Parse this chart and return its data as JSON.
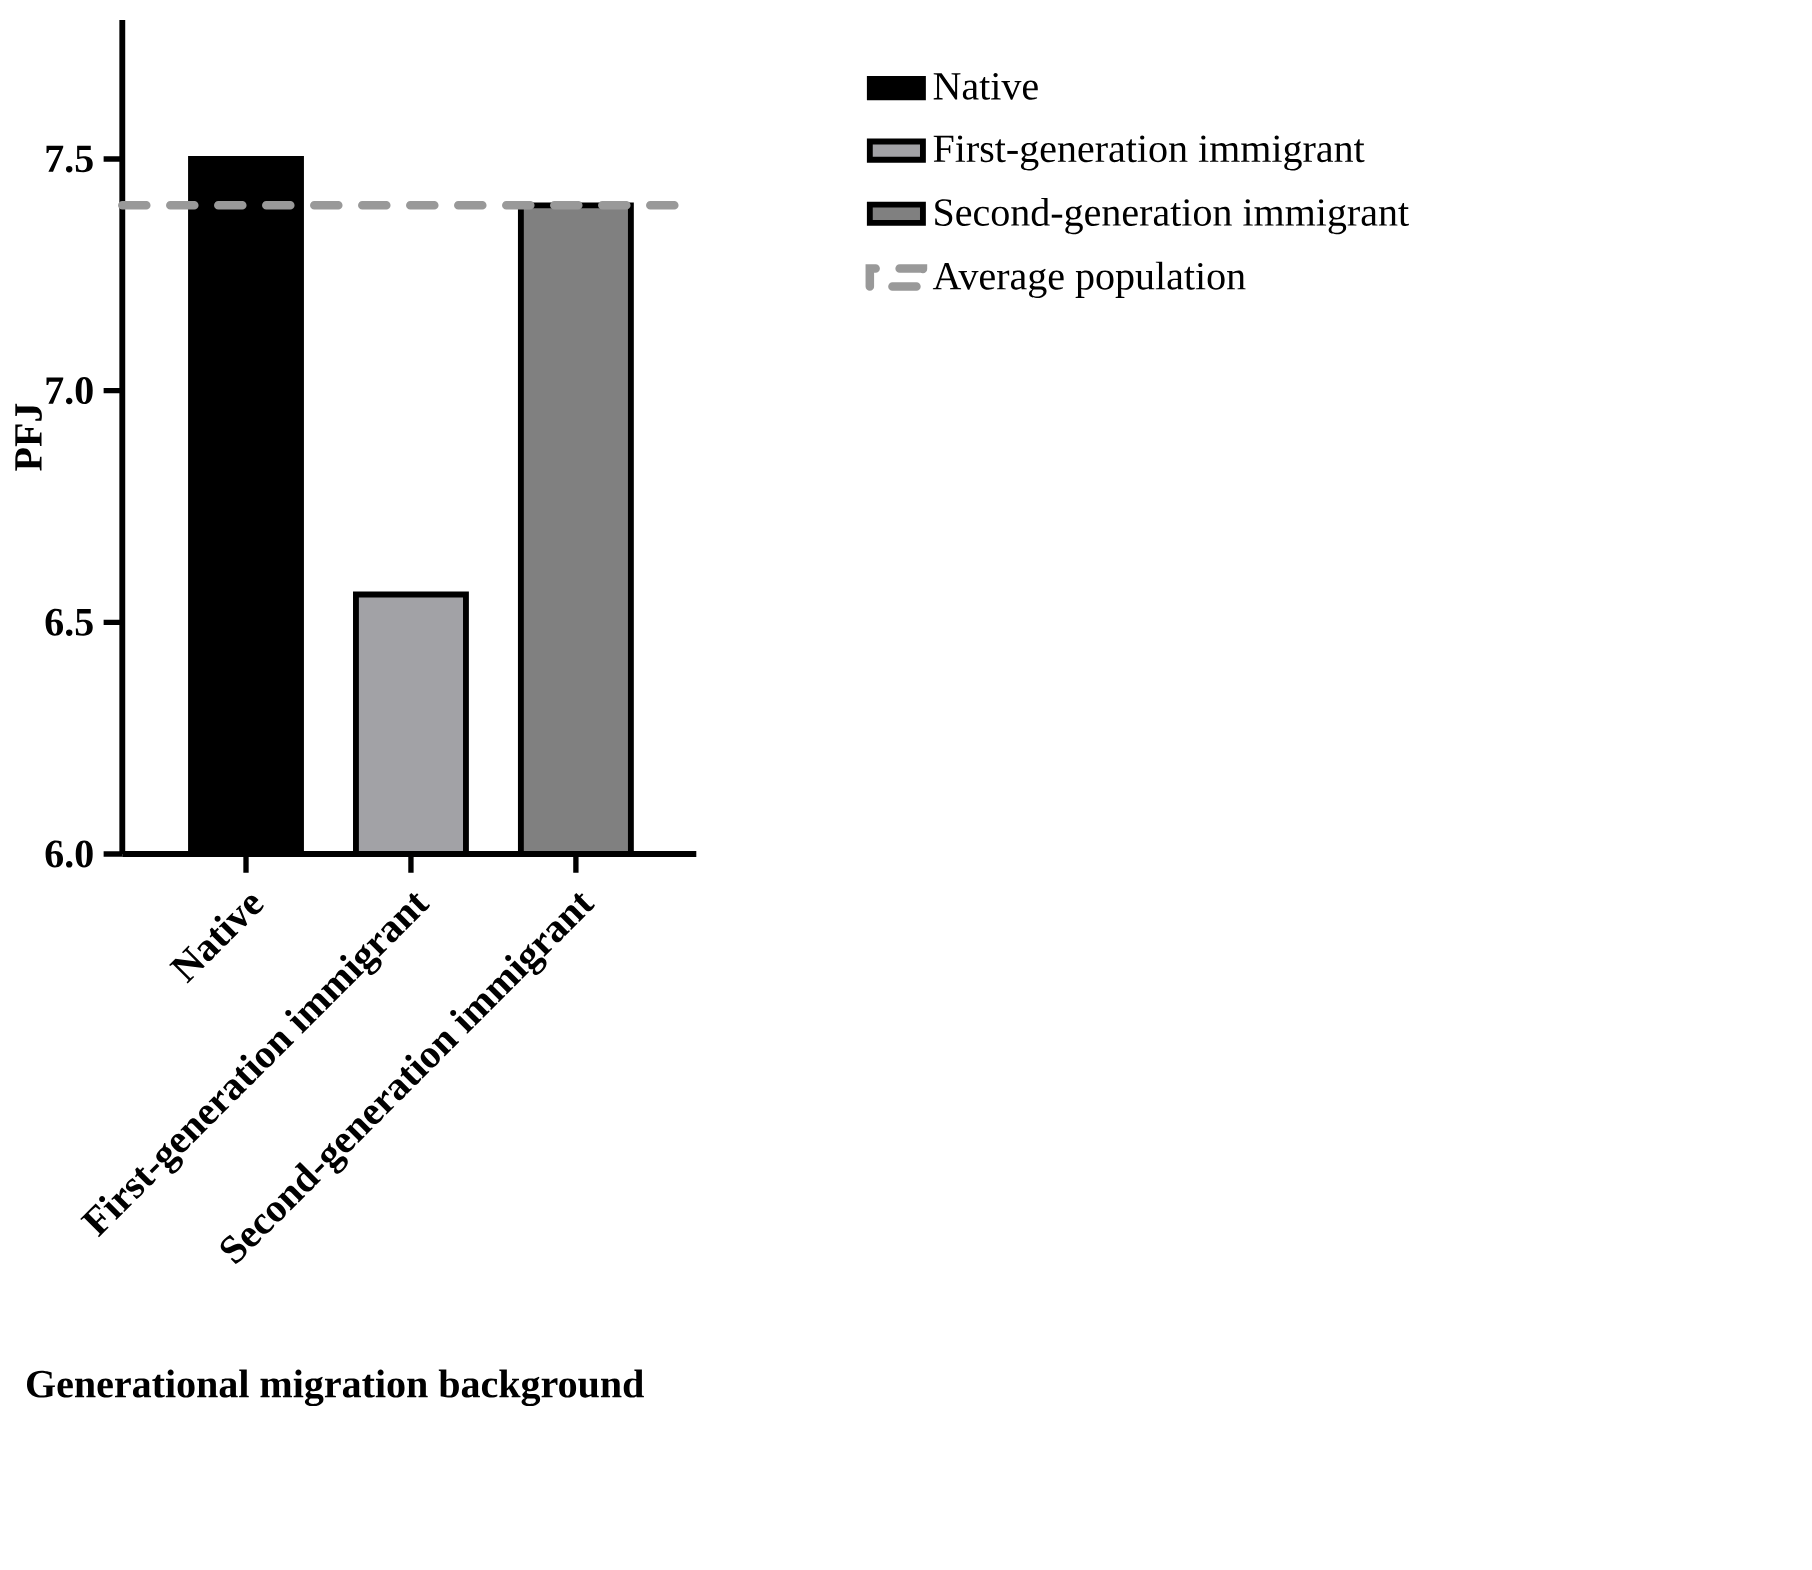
{
  "chart_data": {
    "type": "bar",
    "xlabel": "Generational migration background",
    "ylabel": "PFJ",
    "categories": [
      "Native",
      "First-generation immigrant",
      "Second-generation immigrant"
    ],
    "values": [
      7.5,
      6.56,
      7.4
    ],
    "colors": [
      "#000000",
      "#a2a2a6",
      "#808080"
    ],
    "ylim": [
      6.0,
      7.8
    ],
    "yticks": [
      {
        "value": 6.0,
        "label": "6.0"
      },
      {
        "value": 6.5,
        "label": "6.5"
      },
      {
        "value": 7.0,
        "label": "7.0"
      },
      {
        "value": 7.5,
        "label": "7.5"
      }
    ],
    "ref_lines": [
      {
        "axis": "y",
        "value": 7.4,
        "label": "Average population",
        "color": "#999999",
        "line_style": "dashed"
      }
    ],
    "legend": "top right",
    "grid": false
  }
}
